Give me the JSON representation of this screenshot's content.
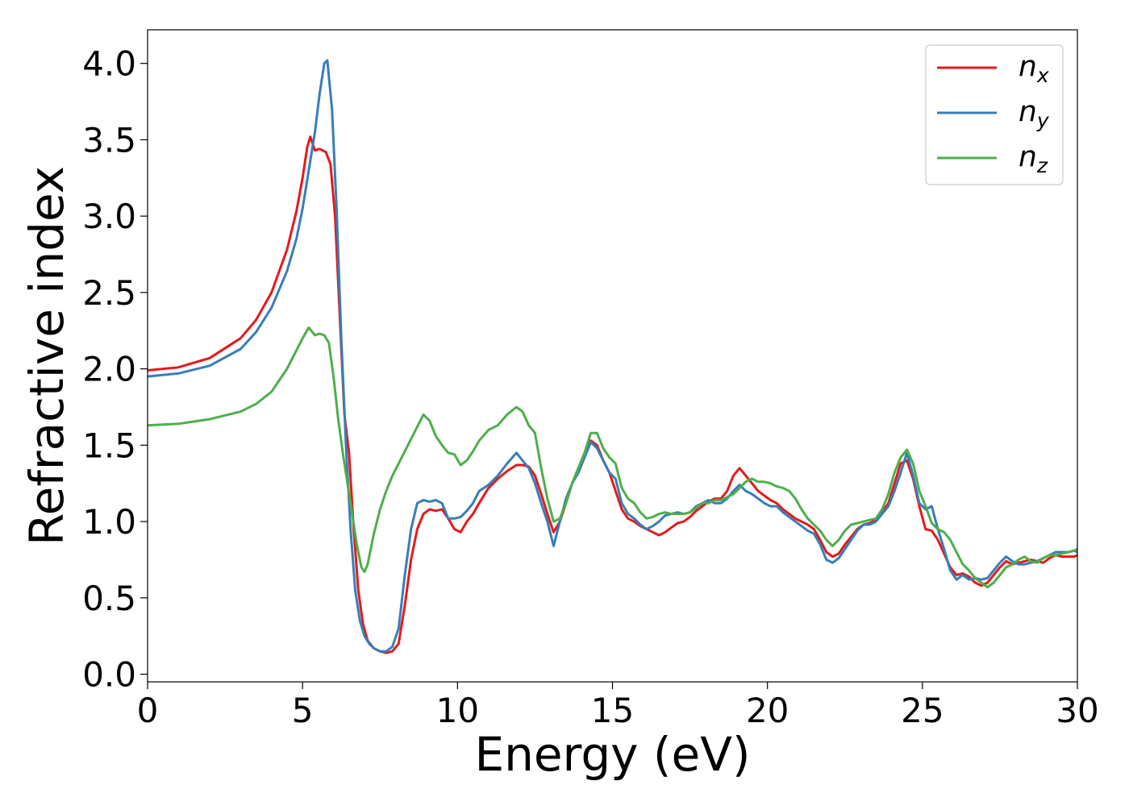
{
  "chart_data": {
    "type": "line",
    "title": "",
    "xlabel": "Energy (eV)",
    "ylabel": "Refractive index",
    "xlim": [
      0,
      30
    ],
    "ylim": [
      -0.05,
      4.22
    ],
    "xticks": [
      0,
      5,
      10,
      15,
      20,
      25,
      30
    ],
    "yticks": [
      0.0,
      0.5,
      1.0,
      1.5,
      2.0,
      2.5,
      3.0,
      3.5,
      4.0
    ],
    "xtick_labels": [
      "0",
      "5",
      "10",
      "15",
      "20",
      "25",
      "30"
    ],
    "ytick_labels": [
      "0.0",
      "0.5",
      "1.0",
      "1.5",
      "2.0",
      "2.5",
      "3.0",
      "3.5",
      "4.0"
    ],
    "grid": false,
    "legend_position": "top-right",
    "series": [
      {
        "name": "n",
        "subscript": "x",
        "color": "#e41a1c",
        "x": [
          0,
          1,
          2,
          3,
          3.5,
          4,
          4.5,
          4.8,
          5.0,
          5.15,
          5.25,
          5.4,
          5.55,
          5.75,
          5.9,
          6.05,
          6.2,
          6.35,
          6.5,
          6.65,
          6.8,
          6.95,
          7.1,
          7.3,
          7.5,
          7.7,
          7.9,
          8.1,
          8.3,
          8.5,
          8.7,
          8.9,
          9.1,
          9.3,
          9.5,
          9.7,
          9.9,
          10.1,
          10.3,
          10.5,
          10.7,
          11.0,
          11.3,
          11.6,
          11.9,
          12.1,
          12.3,
          12.5,
          12.7,
          12.9,
          13.1,
          13.3,
          13.5,
          13.7,
          13.9,
          14.1,
          14.3,
          14.5,
          14.7,
          14.9,
          15.1,
          15.3,
          15.5,
          15.7,
          15.9,
          16.1,
          16.3,
          16.5,
          16.7,
          16.9,
          17.1,
          17.3,
          17.5,
          17.7,
          17.9,
          18.1,
          18.3,
          18.5,
          18.7,
          18.9,
          19.1,
          19.3,
          19.5,
          19.7,
          19.9,
          20.1,
          20.3,
          20.5,
          20.7,
          20.9,
          21.1,
          21.3,
          21.5,
          21.7,
          21.9,
          22.1,
          22.3,
          22.5,
          22.7,
          22.9,
          23.1,
          23.3,
          23.5,
          23.7,
          23.9,
          24.1,
          24.3,
          24.5,
          24.7,
          24.9,
          25.1,
          25.3,
          25.5,
          25.7,
          25.9,
          26.1,
          26.3,
          26.5,
          26.7,
          26.9,
          27.1,
          27.3,
          27.5,
          27.7,
          27.9,
          28.1,
          28.3,
          28.5,
          28.7,
          28.9,
          29.1,
          29.3,
          29.5,
          29.7,
          29.9,
          30
        ],
        "y": [
          1.99,
          2.01,
          2.07,
          2.2,
          2.32,
          2.5,
          2.78,
          3.03,
          3.25,
          3.45,
          3.52,
          3.43,
          3.44,
          3.42,
          3.34,
          3.0,
          2.35,
          1.7,
          1.45,
          0.95,
          0.55,
          0.33,
          0.22,
          0.17,
          0.15,
          0.14,
          0.15,
          0.2,
          0.45,
          0.75,
          0.95,
          1.05,
          1.08,
          1.07,
          1.08,
          1.02,
          0.95,
          0.93,
          1.0,
          1.05,
          1.12,
          1.22,
          1.28,
          1.33,
          1.37,
          1.37,
          1.36,
          1.3,
          1.18,
          1.05,
          0.93,
          1.0,
          1.12,
          1.25,
          1.35,
          1.45,
          1.53,
          1.5,
          1.4,
          1.32,
          1.2,
          1.08,
          1.02,
          1.0,
          0.97,
          0.95,
          0.93,
          0.91,
          0.93,
          0.96,
          0.99,
          1.0,
          1.03,
          1.07,
          1.1,
          1.13,
          1.15,
          1.15,
          1.2,
          1.3,
          1.35,
          1.3,
          1.25,
          1.2,
          1.17,
          1.14,
          1.12,
          1.08,
          1.05,
          1.02,
          1.0,
          0.98,
          0.95,
          0.88,
          0.8,
          0.77,
          0.79,
          0.85,
          0.9,
          0.95,
          0.98,
          0.99,
          1.01,
          1.06,
          1.12,
          1.25,
          1.38,
          1.4,
          1.28,
          1.1,
          0.95,
          0.94,
          0.88,
          0.79,
          0.7,
          0.65,
          0.66,
          0.64,
          0.6,
          0.58,
          0.6,
          0.65,
          0.7,
          0.74,
          0.72,
          0.73,
          0.74,
          0.75,
          0.74,
          0.73,
          0.76,
          0.78,
          0.77,
          0.77,
          0.77,
          0.78
        ]
      },
      {
        "name": "n",
        "subscript": "y",
        "color": "#377eb8",
        "x": [
          0,
          1,
          2,
          3,
          3.5,
          4,
          4.5,
          4.8,
          5.0,
          5.2,
          5.4,
          5.55,
          5.7,
          5.8,
          5.95,
          6.1,
          6.25,
          6.4,
          6.55,
          6.7,
          6.85,
          7.0,
          7.15,
          7.3,
          7.5,
          7.7,
          7.9,
          8.1,
          8.3,
          8.5,
          8.7,
          8.9,
          9.1,
          9.3,
          9.5,
          9.7,
          9.9,
          10.1,
          10.3,
          10.5,
          10.7,
          11.0,
          11.3,
          11.6,
          11.9,
          12.1,
          12.3,
          12.5,
          12.7,
          12.9,
          13.1,
          13.3,
          13.5,
          13.7,
          13.9,
          14.1,
          14.3,
          14.5,
          14.7,
          14.9,
          15.1,
          15.3,
          15.5,
          15.7,
          15.9,
          16.1,
          16.3,
          16.5,
          16.7,
          16.9,
          17.1,
          17.3,
          17.5,
          17.7,
          17.9,
          18.1,
          18.3,
          18.5,
          18.7,
          18.9,
          19.1,
          19.3,
          19.5,
          19.7,
          19.9,
          20.1,
          20.3,
          20.5,
          20.7,
          20.9,
          21.1,
          21.3,
          21.5,
          21.7,
          21.9,
          22.1,
          22.3,
          22.5,
          22.7,
          22.9,
          23.1,
          23.3,
          23.5,
          23.7,
          23.9,
          24.1,
          24.3,
          24.5,
          24.7,
          24.9,
          25.1,
          25.3,
          25.5,
          25.7,
          25.9,
          26.1,
          26.3,
          26.5,
          26.7,
          26.9,
          27.1,
          27.3,
          27.5,
          27.7,
          27.9,
          28.1,
          28.3,
          28.5,
          28.7,
          28.9,
          29.1,
          29.3,
          29.5,
          29.7,
          29.9,
          30
        ],
        "y": [
          1.95,
          1.97,
          2.02,
          2.13,
          2.24,
          2.4,
          2.64,
          2.85,
          3.05,
          3.3,
          3.55,
          3.8,
          4.0,
          4.02,
          3.7,
          3.05,
          2.2,
          1.5,
          0.95,
          0.55,
          0.35,
          0.25,
          0.2,
          0.17,
          0.15,
          0.15,
          0.18,
          0.3,
          0.65,
          0.95,
          1.12,
          1.14,
          1.13,
          1.14,
          1.12,
          1.02,
          1.02,
          1.03,
          1.07,
          1.12,
          1.2,
          1.24,
          1.3,
          1.38,
          1.45,
          1.4,
          1.35,
          1.25,
          1.12,
          1.0,
          0.84,
          1.0,
          1.15,
          1.25,
          1.32,
          1.42,
          1.52,
          1.48,
          1.4,
          1.32,
          1.28,
          1.12,
          1.05,
          1.02,
          0.98,
          0.95,
          0.97,
          1.0,
          1.04,
          1.05,
          1.06,
          1.05,
          1.06,
          1.1,
          1.12,
          1.14,
          1.12,
          1.12,
          1.15,
          1.2,
          1.24,
          1.2,
          1.18,
          1.15,
          1.12,
          1.1,
          1.1,
          1.06,
          1.03,
          1.0,
          0.97,
          0.94,
          0.92,
          0.85,
          0.75,
          0.73,
          0.76,
          0.82,
          0.88,
          0.94,
          0.98,
          0.98,
          1.0,
          1.05,
          1.1,
          1.2,
          1.32,
          1.45,
          1.3,
          1.12,
          1.08,
          1.1,
          0.95,
          0.82,
          0.68,
          0.62,
          0.65,
          0.62,
          0.63,
          0.62,
          0.63,
          0.68,
          0.73,
          0.77,
          0.74,
          0.72,
          0.72,
          0.73,
          0.74,
          0.76,
          0.78,
          0.8,
          0.8,
          0.8,
          0.81,
          0.8
        ]
      },
      {
        "name": "n",
        "subscript": "z",
        "color": "#4daf4a",
        "x": [
          0,
          1,
          2,
          3,
          3.5,
          4,
          4.5,
          4.8,
          5.0,
          5.2,
          5.4,
          5.55,
          5.7,
          5.85,
          6.0,
          6.15,
          6.3,
          6.45,
          6.6,
          6.75,
          6.9,
          7.0,
          7.1,
          7.3,
          7.5,
          7.7,
          7.9,
          8.1,
          8.3,
          8.5,
          8.7,
          8.9,
          9.1,
          9.3,
          9.5,
          9.7,
          9.9,
          10.1,
          10.3,
          10.5,
          10.7,
          11.0,
          11.3,
          11.6,
          11.9,
          12.1,
          12.3,
          12.5,
          12.7,
          12.9,
          13.1,
          13.3,
          13.5,
          13.7,
          13.9,
          14.1,
          14.3,
          14.5,
          14.7,
          14.9,
          15.1,
          15.3,
          15.5,
          15.7,
          15.9,
          16.1,
          16.3,
          16.5,
          16.7,
          16.9,
          17.1,
          17.3,
          17.5,
          17.7,
          17.9,
          18.1,
          18.3,
          18.5,
          18.7,
          18.9,
          19.1,
          19.3,
          19.5,
          19.7,
          19.9,
          20.1,
          20.3,
          20.5,
          20.7,
          20.9,
          21.1,
          21.3,
          21.5,
          21.7,
          21.9,
          22.1,
          22.3,
          22.5,
          22.7,
          22.9,
          23.1,
          23.3,
          23.5,
          23.7,
          23.9,
          24.1,
          24.3,
          24.5,
          24.7,
          24.9,
          25.1,
          25.3,
          25.5,
          25.7,
          25.9,
          26.1,
          26.3,
          26.5,
          26.7,
          26.9,
          27.1,
          27.3,
          27.5,
          27.7,
          27.9,
          28.1,
          28.3,
          28.5,
          28.7,
          28.9,
          29.1,
          29.3,
          29.5,
          29.7,
          29.9,
          30
        ],
        "y": [
          1.63,
          1.64,
          1.67,
          1.72,
          1.77,
          1.85,
          2.0,
          2.12,
          2.2,
          2.27,
          2.22,
          2.23,
          2.22,
          2.17,
          1.95,
          1.67,
          1.45,
          1.25,
          1.05,
          0.85,
          0.7,
          0.67,
          0.72,
          0.92,
          1.08,
          1.2,
          1.3,
          1.38,
          1.46,
          1.54,
          1.62,
          1.7,
          1.66,
          1.56,
          1.5,
          1.45,
          1.44,
          1.37,
          1.4,
          1.46,
          1.53,
          1.6,
          1.63,
          1.7,
          1.75,
          1.72,
          1.63,
          1.58,
          1.35,
          1.15,
          1.0,
          1.02,
          1.12,
          1.25,
          1.35,
          1.45,
          1.58,
          1.58,
          1.48,
          1.42,
          1.38,
          1.22,
          1.15,
          1.12,
          1.06,
          1.02,
          1.03,
          1.05,
          1.06,
          1.05,
          1.05,
          1.05,
          1.06,
          1.09,
          1.12,
          1.12,
          1.14,
          1.14,
          1.16,
          1.18,
          1.22,
          1.26,
          1.28,
          1.26,
          1.26,
          1.25,
          1.23,
          1.22,
          1.2,
          1.15,
          1.08,
          1.02,
          0.98,
          0.94,
          0.88,
          0.84,
          0.88,
          0.94,
          0.98,
          0.99,
          1.0,
          1.01,
          1.02,
          1.08,
          1.18,
          1.32,
          1.42,
          1.47,
          1.38,
          1.2,
          1.1,
          0.99,
          0.95,
          0.93,
          0.88,
          0.8,
          0.72,
          0.68,
          0.63,
          0.6,
          0.57,
          0.6,
          0.65,
          0.7,
          0.72,
          0.75,
          0.77,
          0.74,
          0.73,
          0.76,
          0.78,
          0.78,
          0.79,
          0.8,
          0.81,
          0.82
        ]
      }
    ]
  }
}
